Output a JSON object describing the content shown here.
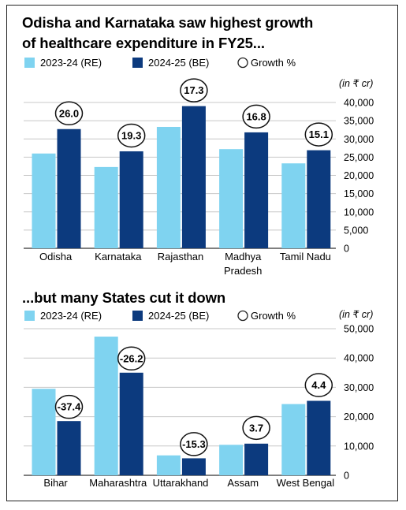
{
  "charts": [
    {
      "title": "Odisha and Karnataka saw highest growth\nof healthcare expenditure in FY25...",
      "legend": {
        "s1": "2023-24 (RE)",
        "s2": "2024-25 (BE)",
        "growth": "Growth %"
      },
      "unit": "(in ₹ cr)",
      "categories": [
        [
          "Odisha"
        ],
        [
          "Karnataka"
        ],
        [
          "Rajasthan"
        ],
        [
          "Madhya",
          "Pradesh"
        ],
        [
          "Tamil Nadu"
        ]
      ]
    },
    {
      "title": "...but many States cut it down",
      "legend": {
        "s1": "2023-24 (RE)",
        "s2": "2024-25 (BE)",
        "growth": "Growth %"
      },
      "unit": "(in ₹ cr)",
      "categories": [
        [
          "Bihar"
        ],
        [
          "Maharashtra"
        ],
        [
          "Uttarakhand"
        ],
        [
          "Assam"
        ],
        [
          "West Bengal"
        ]
      ]
    }
  ],
  "colors": {
    "light": "#7fd3f0",
    "dark": "#0c3a7e",
    "grid": "#c8c8c8"
  },
  "chart_data": [
    {
      "type": "bar",
      "title": "Odisha and Karnataka saw highest growth of healthcare expenditure in FY25...",
      "ylabel": "(in ₹ cr)",
      "categories": [
        "Odisha",
        "Karnataka",
        "Rajasthan",
        "Madhya Pradesh",
        "Tamil Nadu"
      ],
      "series": [
        {
          "name": "2023-24 (RE)",
          "values": [
            26000,
            22300,
            33300,
            27200,
            23300
          ]
        },
        {
          "name": "2024-25 (BE)",
          "values": [
            32700,
            26600,
            39000,
            31800,
            26900
          ]
        }
      ],
      "growth_labels": [
        "26.0",
        "19.3",
        "17.3",
        "16.8",
        "15.1"
      ],
      "yticks": [
        "0",
        "5,000",
        "10,000",
        "15,000",
        "20,000",
        "25,000",
        "30,000",
        "35,000",
        "40,000"
      ],
      "ylim": [
        0,
        40000
      ],
      "grid": true,
      "legend_position": "top"
    },
    {
      "type": "bar",
      "title": "...but many States cut it down",
      "ylabel": "(in ₹ cr)",
      "categories": [
        "Bihar",
        "Maharashtra",
        "Uttarakhand",
        "Assam",
        "West Bengal"
      ],
      "series": [
        {
          "name": "2023-24 (RE)",
          "values": [
            29500,
            47300,
            6800,
            10400,
            24300
          ]
        },
        {
          "name": "2024-25 (BE)",
          "values": [
            18500,
            35000,
            5800,
            10800,
            25400
          ]
        }
      ],
      "growth_labels": [
        "-37.4",
        "-26.2",
        "-15.3",
        "3.7",
        "4.4"
      ],
      "yticks": [
        "0",
        "10,000",
        "20,000",
        "30,000",
        "40,000",
        "50,000"
      ],
      "ylim": [
        0,
        50000
      ],
      "grid": true,
      "legend_position": "top"
    }
  ]
}
